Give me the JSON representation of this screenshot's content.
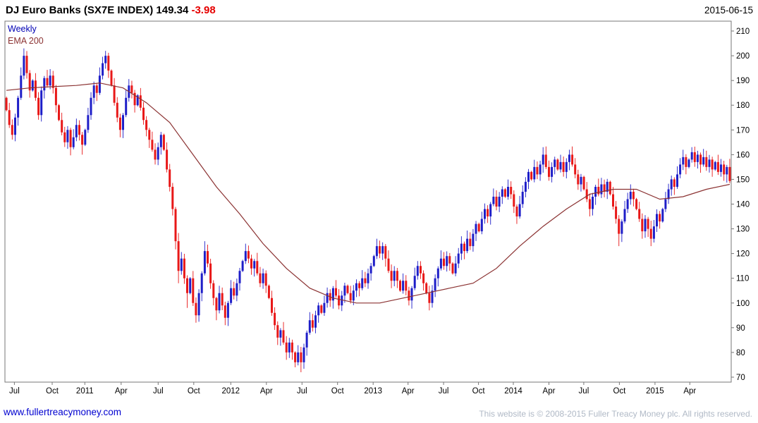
{
  "header": {
    "title": "DJ Euro Banks (SX7E INDEX)",
    "last": "149.34",
    "change": "-3.98",
    "date": "2015-06-15"
  },
  "legend": {
    "timeframe": "Weekly",
    "overlay": "EMA 200"
  },
  "footer": {
    "link": "www.fullertreacymoney.com",
    "copyright": "This website is © 2008-2015 Fuller Treacy Money plc. All rights reserved."
  },
  "chart_data": {
    "type": "candlestick",
    "title": "DJ Euro Banks (SX7E INDEX)",
    "timeframe": "Weekly",
    "overlay": "EMA 200",
    "date": "2015-06-15",
    "last_price": 149.34,
    "change": -3.98,
    "ylim": [
      70,
      210
    ],
    "ytick_step": 10,
    "y_ticks": [
      210,
      200,
      190,
      180,
      170,
      160,
      150,
      140,
      130,
      120,
      110,
      100,
      90,
      80,
      70
    ],
    "x_ticks": [
      {
        "label": "Jul",
        "pos": 0.013
      },
      {
        "label": "Oct",
        "pos": 0.065
      },
      {
        "label": "2011",
        "pos": 0.11
      },
      {
        "label": "Apr",
        "pos": 0.16
      },
      {
        "label": "Jul",
        "pos": 0.211
      },
      {
        "label": "Oct",
        "pos": 0.26
      },
      {
        "label": "2012",
        "pos": 0.311
      },
      {
        "label": "Apr",
        "pos": 0.36
      },
      {
        "label": "Jul",
        "pos": 0.409
      },
      {
        "label": "Oct",
        "pos": 0.458
      },
      {
        "label": "2013",
        "pos": 0.507
      },
      {
        "label": "Apr",
        "pos": 0.555
      },
      {
        "label": "Jul",
        "pos": 0.604
      },
      {
        "label": "Oct",
        "pos": 0.652
      },
      {
        "label": "2014",
        "pos": 0.7
      },
      {
        "label": "Apr",
        "pos": 0.749
      },
      {
        "label": "Jul",
        "pos": 0.797
      },
      {
        "label": "Oct",
        "pos": 0.846
      },
      {
        "label": "2015",
        "pos": 0.895
      },
      {
        "label": "Apr",
        "pos": 0.943
      }
    ],
    "first_open": 183,
    "closes": [
      178,
      172,
      168,
      175,
      183,
      192,
      200,
      193,
      186,
      190,
      183,
      176,
      186,
      191,
      188,
      192,
      187,
      180,
      174,
      169,
      165,
      170,
      163,
      167,
      172,
      168,
      164,
      170,
      176,
      183,
      188,
      185,
      192,
      197,
      200,
      194,
      188,
      181,
      175,
      170,
      176,
      183,
      188,
      185,
      180,
      184,
      179,
      174,
      170,
      166,
      162,
      158,
      163,
      168,
      162,
      154,
      147,
      138,
      125,
      113,
      118,
      110,
      104,
      110,
      100,
      95,
      104,
      112,
      121,
      116,
      108,
      102,
      97,
      104,
      99,
      94,
      100,
      106,
      103,
      108,
      113,
      117,
      121,
      118,
      114,
      117,
      112,
      108,
      112,
      107,
      102,
      96,
      91,
      86,
      89,
      84,
      80,
      84,
      80,
      76,
      80,
      76,
      82,
      88,
      93,
      90,
      95,
      99,
      96,
      100,
      104,
      101,
      106,
      103,
      99,
      103,
      107,
      104,
      101,
      105,
      108,
      106,
      110,
      108,
      112,
      115,
      119,
      123,
      120,
      123,
      118,
      113,
      109,
      113,
      109,
      105,
      109,
      105,
      101,
      106,
      111,
      115,
      112,
      108,
      104,
      100,
      105,
      110,
      114,
      118,
      115,
      119,
      116,
      112,
      116,
      120,
      124,
      121,
      126,
      123,
      128,
      132,
      129,
      134,
      138,
      135,
      140,
      143,
      139,
      143,
      146,
      143,
      147,
      144,
      139,
      135,
      140,
      145,
      149,
      153,
      150,
      155,
      152,
      156,
      160,
      155,
      151,
      155,
      158,
      154,
      157,
      153,
      157,
      160,
      156,
      152,
      148,
      151,
      146,
      142,
      138,
      143,
      147,
      144,
      148,
      145,
      149,
      144,
      139,
      134,
      128,
      133,
      138,
      142,
      145,
      142,
      138,
      134,
      129,
      134,
      130,
      126,
      131,
      136,
      133,
      138,
      142,
      146,
      150,
      147,
      152,
      156,
      159,
      155,
      158,
      161,
      157,
      160,
      156,
      159,
      155,
      158,
      154,
      157,
      153,
      156,
      152,
      155,
      149.34
    ],
    "spike_highs": {
      "6": 203,
      "34": 202,
      "68": 125,
      "82": 124,
      "127": 126,
      "141": 117,
      "156": 127,
      "184": 163,
      "193": 162,
      "214": 148,
      "232": 162,
      "235": 163
    },
    "spike_lows": {
      "26": 160,
      "39": 167,
      "51": 156,
      "59": 108,
      "62": 98,
      "65": 92,
      "72": 93,
      "75": 91,
      "93": 83,
      "96": 77,
      "99": 74,
      "101": 72,
      "132": 106,
      "138": 99,
      "145": 97,
      "175": 132,
      "200": 135,
      "210": 123,
      "218": 126,
      "221": 123
    },
    "ema_step": 8,
    "ema": [
      186,
      187,
      187.5,
      188,
      189,
      187,
      181,
      173,
      160,
      147,
      136,
      124,
      114,
      106,
      102,
      100,
      100,
      102,
      104,
      106,
      108,
      114,
      123,
      131,
      138,
      144,
      146,
      146,
      142,
      143,
      146,
      148
    ],
    "colors": {
      "up": "#1e1ec8",
      "down": "#e81818",
      "ema": "#8b3232",
      "change_negative": "#e60000",
      "timeframe_label": "#0000b4",
      "axis": "#777777",
      "link": "#0000d0",
      "copyright": "#b0b9c6"
    }
  }
}
